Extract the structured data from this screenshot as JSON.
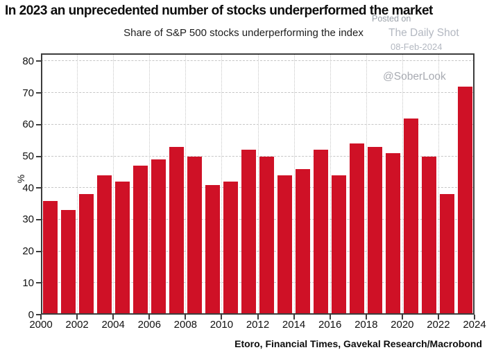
{
  "title": "In 2023 an unprecedented number of stocks underperformed the market",
  "subtitle": "Share of S&P 500 stocks underperforming the index",
  "watermark": {
    "posted_on": "Posted on",
    "site": "The Daily Shot",
    "date": "08-Feb-2024",
    "handle": "@SoberLook"
  },
  "source_credit": "Etoro, Financial Times, Gavekal Research/Macrobond",
  "colors": {
    "bar": "#cf1126",
    "grid": "#c6c6c6",
    "frame": "#3c3c3c",
    "text": "#111111",
    "watermark": "#b3b8c1"
  },
  "chart_data": {
    "type": "bar",
    "title": "Share of S&P 500 stocks underperforming the index",
    "categories": [
      2000,
      2001,
      2002,
      2003,
      2004,
      2005,
      2006,
      2007,
      2008,
      2009,
      2010,
      2011,
      2012,
      2013,
      2014,
      2015,
      2016,
      2017,
      2018,
      2019,
      2020,
      2021,
      2022,
      2023
    ],
    "values": [
      36,
      33,
      38,
      44,
      42,
      47,
      49,
      53,
      50,
      41,
      42,
      52,
      50,
      44,
      46,
      52,
      44,
      54,
      53,
      51,
      62,
      50,
      38,
      72
    ],
    "xlabel": "",
    "ylabel": "%",
    "ylim": [
      0,
      82.5
    ],
    "yticks": [
      0,
      10,
      20,
      30,
      40,
      50,
      60,
      70,
      80
    ],
    "xticks": [
      2000,
      2002,
      2004,
      2006,
      2008,
      2010,
      2012,
      2014,
      2016,
      2018,
      2020,
      2022,
      2024
    ],
    "grid": true,
    "legend": false,
    "bar_color": "#cf1126"
  }
}
